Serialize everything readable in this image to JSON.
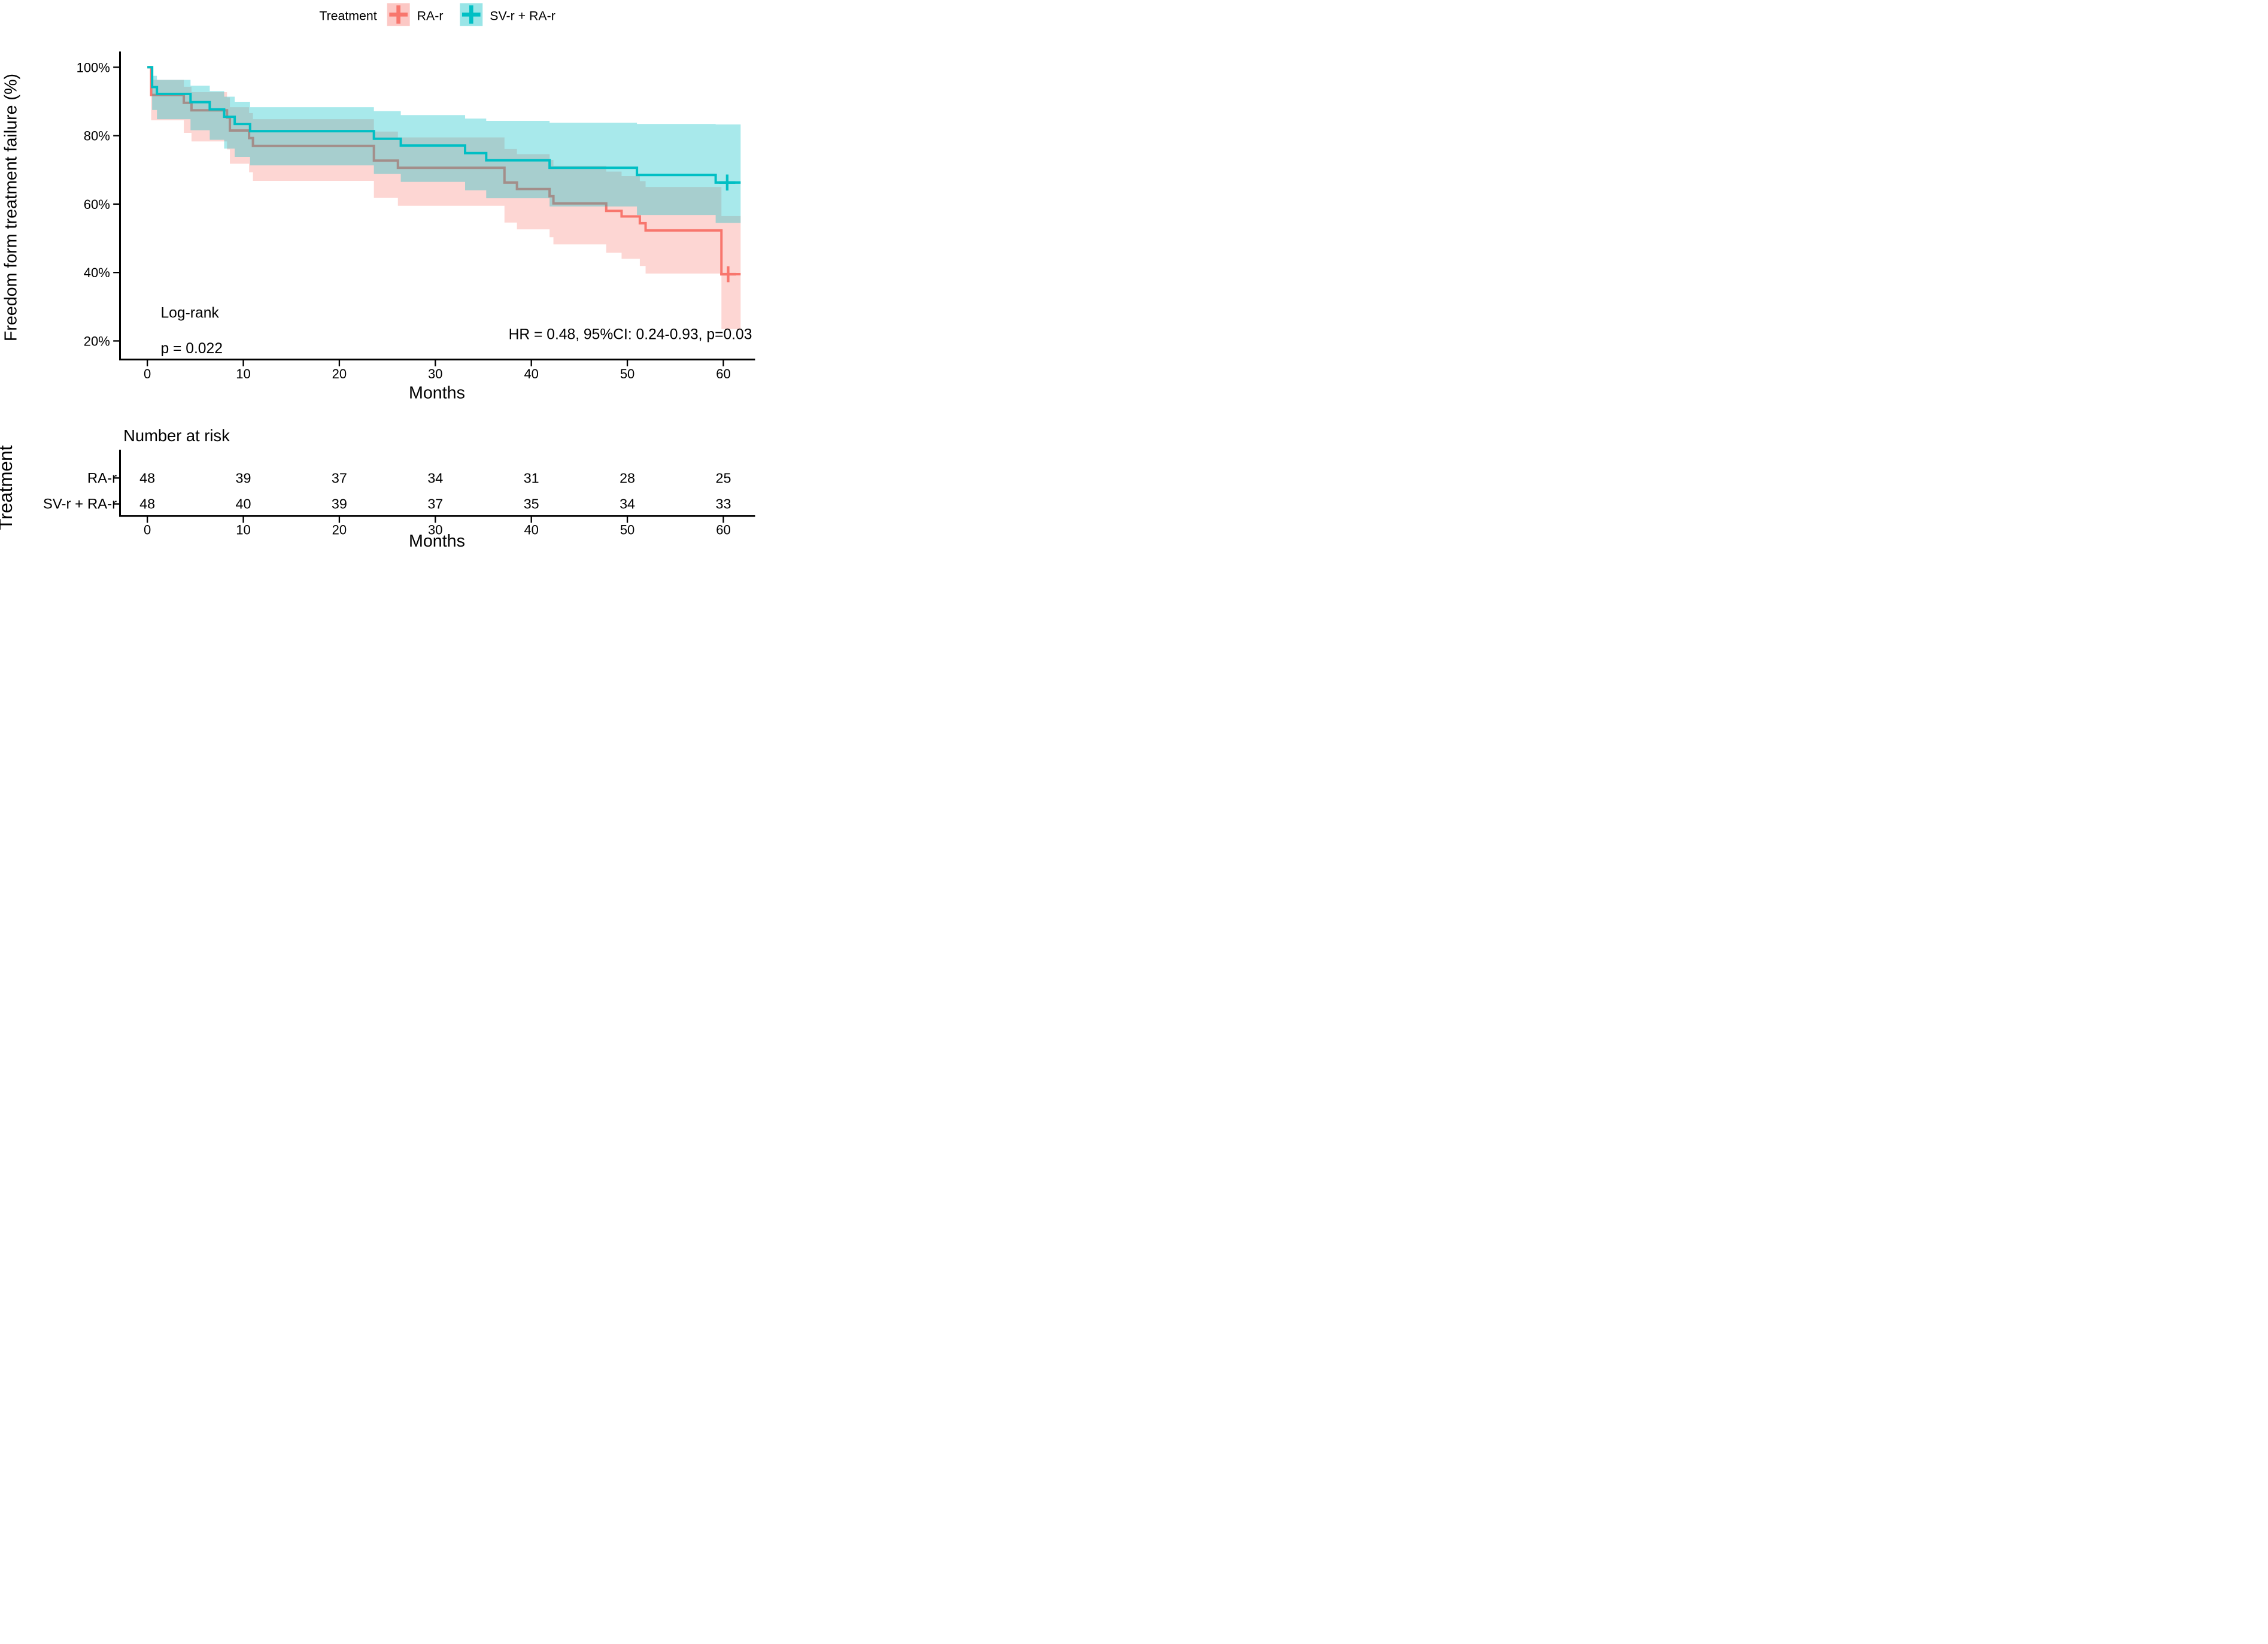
{
  "page": {
    "background": "#ffffff"
  },
  "legend": {
    "title": "Treatment",
    "items": [
      {
        "label": "RA-r",
        "color": "#F8766D",
        "key_fill": "rgba(248,118,109,0.40)"
      },
      {
        "label": "SV-r + RA-r",
        "color": "#00BFC4",
        "key_fill": "rgba(0,191,196,0.40)"
      }
    ]
  },
  "annotations": {
    "logrank_label": "Log-rank",
    "logrank_p": "p = 0.022",
    "hr_text": "HR = 0.48, 95%CI: 0.24-0.93, p=0.03"
  },
  "chart_data": {
    "type": "line",
    "subtype": "kaplan-meier-step-with-ci",
    "title": "",
    "xlabel": "Months",
    "ylabel": "Freedom form treatment failure (%)",
    "xlim": [
      -2.85,
      63.3
    ],
    "ylim": [
      14,
      105
    ],
    "grid": false,
    "legend_position": "top",
    "xticks": [
      0,
      10,
      20,
      30,
      40,
      50,
      60
    ],
    "yticks": [
      {
        "value": 100,
        "label": "100%"
      },
      {
        "value": 80,
        "label": "80%"
      },
      {
        "value": 60,
        "label": "60%"
      },
      {
        "value": 40,
        "label": "40%"
      },
      {
        "value": 20,
        "label": "20%"
      }
    ],
    "t_end": 61.8,
    "series": [
      {
        "name": "RA-r",
        "color": "#F8766D",
        "fill": "rgba(248,118,109,0.30)",
        "steps": [
          [
            0,
            100,
            100,
            100
          ],
          [
            0.4,
            91.9,
            84.5,
            96.3
          ],
          [
            3.8,
            89.6,
            80.8,
            94.3
          ],
          [
            4.6,
            87.4,
            78.3,
            92.7
          ],
          [
            8.3,
            85.3,
            76.0,
            91.2
          ],
          [
            8.6,
            81.5,
            71.8,
            88.3
          ],
          [
            10.6,
            79.3,
            69.3,
            86.6
          ],
          [
            11.0,
            77.0,
            66.8,
            84.8
          ],
          [
            23.6,
            72.7,
            61.8,
            81.2
          ],
          [
            26.1,
            70.6,
            59.5,
            79.5
          ],
          [
            37.2,
            66.3,
            54.6,
            76.1
          ],
          [
            38.5,
            64.4,
            52.6,
            74.6
          ],
          [
            41.9,
            62.3,
            50.3,
            72.9
          ],
          [
            42.3,
            60.2,
            48.2,
            71.2
          ],
          [
            47.8,
            58.0,
            45.8,
            69.5
          ],
          [
            49.4,
            56.4,
            44.0,
            68.2
          ],
          [
            51.3,
            54.4,
            41.9,
            66.7
          ],
          [
            51.9,
            52.3,
            39.7,
            65.0
          ],
          [
            59.8,
            39.5,
            23.5,
            56.5
          ]
        ],
        "censors": [
          [
            60.5,
            39.5
          ]
        ]
      },
      {
        "name": "SV-r + RA-r",
        "color": "#00BFC4",
        "fill": "rgba(0,191,196,0.34)",
        "steps": [
          [
            0,
            100,
            100,
            100
          ],
          [
            0.5,
            94.2,
            87.5,
            97.5
          ],
          [
            1.0,
            92.2,
            84.8,
            96.3
          ],
          [
            4.5,
            89.8,
            81.6,
            94.6
          ],
          [
            6.5,
            87.7,
            78.8,
            93.0
          ],
          [
            8.0,
            85.5,
            76.2,
            91.4
          ],
          [
            9.1,
            83.4,
            73.8,
            89.9
          ],
          [
            10.7,
            81.3,
            71.3,
            88.3
          ],
          [
            23.6,
            79.1,
            68.8,
            87.2
          ],
          [
            26.4,
            77.1,
            66.5,
            86.0
          ],
          [
            33.1,
            74.9,
            64.0,
            85.0
          ],
          [
            35.3,
            72.8,
            61.7,
            84.3
          ],
          [
            41.9,
            70.6,
            59.3,
            83.8
          ],
          [
            51.0,
            68.5,
            56.8,
            83.4
          ],
          [
            59.2,
            66.3,
            54.5,
            83.3
          ]
        ],
        "censors": [
          [
            60.4,
            66.3
          ]
        ]
      }
    ]
  },
  "risk_table": {
    "title": "Number at risk",
    "ylabel": "Treatment",
    "xlabel": "Months",
    "timepoints": [
      0,
      10,
      20,
      30,
      40,
      50,
      60
    ],
    "rows": [
      {
        "label": "RA-r",
        "color": "#F8766D",
        "counts": [
          48,
          39,
          37,
          34,
          31,
          28,
          25
        ]
      },
      {
        "label": "SV-r + RA-r",
        "color": "#00BFC4",
        "counts": [
          48,
          40,
          39,
          37,
          35,
          34,
          33
        ]
      }
    ]
  }
}
